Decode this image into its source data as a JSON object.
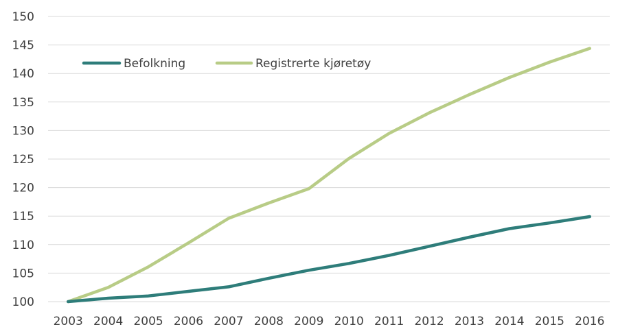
{
  "chart_data": {
    "type": "line",
    "title": "",
    "xlabel": "",
    "ylabel": "",
    "categories": [
      "2003",
      "2004",
      "2005",
      "2006",
      "2007",
      "2008",
      "2009",
      "2010",
      "2011",
      "2012",
      "2013",
      "2014",
      "2015",
      "2016"
    ],
    "ylim": [
      100,
      150
    ],
    "yticks": [
      100,
      105,
      110,
      115,
      120,
      125,
      130,
      135,
      140,
      145,
      150
    ],
    "grid": true,
    "legend_position": "top-left",
    "series": [
      {
        "name": "Befolkning",
        "color": "#2e7d7a",
        "values": [
          100,
          100.6,
          101.0,
          101.8,
          102.6,
          104.1,
          105.5,
          106.7,
          108.1,
          109.7,
          111.3,
          112.8,
          113.8,
          114.9
        ]
      },
      {
        "name": "Registrerte kjøretøy",
        "color": "#b8cc86",
        "values": [
          100,
          102.5,
          106.1,
          110.3,
          114.6,
          117.3,
          119.8,
          125.1,
          129.5,
          133.1,
          136.3,
          139.3,
          142.0,
          144.4
        ]
      }
    ]
  }
}
